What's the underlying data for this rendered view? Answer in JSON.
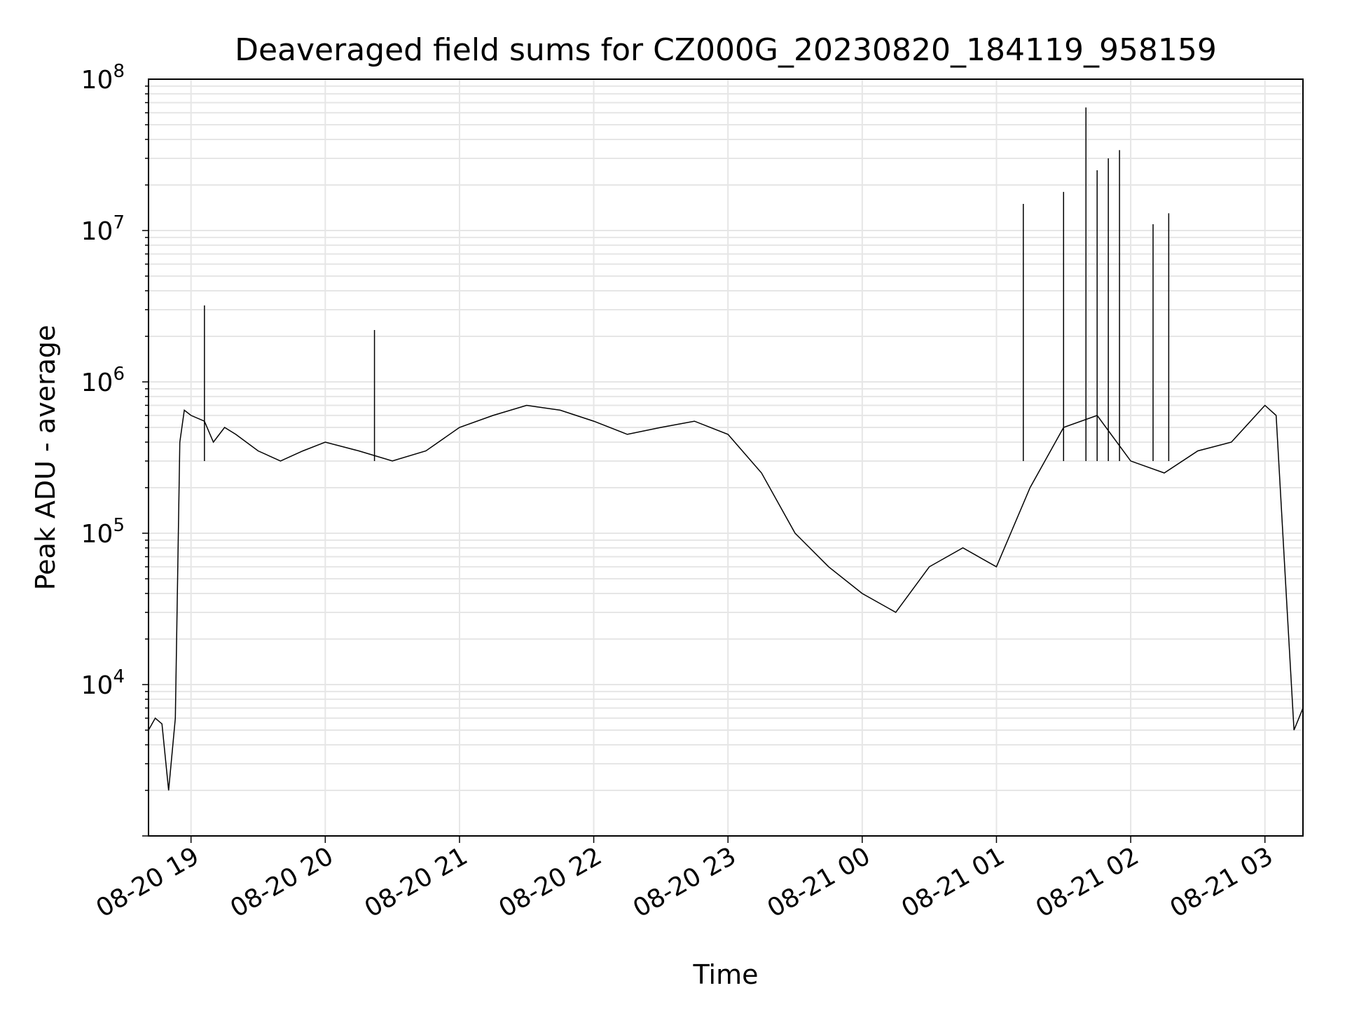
{
  "chart_data": {
    "type": "line",
    "title": "Deaveraged field sums for CZ000G_20230820_184119_958159",
    "xlabel": "Time",
    "ylabel": "Peak ADU - average",
    "yscale": "log",
    "ylim": [
      1000,
      100000000
    ],
    "xlim": [
      "2023-08-20 18:41",
      "2023-08-21 03:17"
    ],
    "grid": true,
    "x_ticks": [
      "08-20 19",
      "08-20 20",
      "08-20 21",
      "08-20 22",
      "08-20 23",
      "08-21 00",
      "08-21 01",
      "08-21 02",
      "08-21 03"
    ],
    "y_ticks": [
      {
        "base": "10",
        "exp": "4",
        "value": 10000
      },
      {
        "base": "10",
        "exp": "5",
        "value": 100000
      },
      {
        "base": "10",
        "exp": "6",
        "value": 1000000
      },
      {
        "base": "10",
        "exp": "7",
        "value": 10000000
      },
      {
        "base": "10",
        "exp": "8",
        "value": 100000000
      }
    ],
    "line_color": "#000000",
    "grid_color": "#e6e6e6",
    "series": [
      {
        "x": [
          "2023-08-20 18:41",
          "2023-08-20 18:44",
          "2023-08-20 18:47",
          "2023-08-20 18:50",
          "2023-08-20 18:53",
          "2023-08-20 18:55",
          "2023-08-20 18:57",
          "2023-08-20 19:00",
          "2023-08-20 19:06",
          "2023-08-20 19:10",
          "2023-08-20 19:15",
          "2023-08-20 19:20",
          "2023-08-20 19:30",
          "2023-08-20 19:40",
          "2023-08-20 19:50",
          "2023-08-20 20:00",
          "2023-08-20 20:15",
          "2023-08-20 20:30",
          "2023-08-20 20:45",
          "2023-08-20 21:00",
          "2023-08-20 21:15",
          "2023-08-20 21:30",
          "2023-08-20 21:45",
          "2023-08-20 22:00",
          "2023-08-20 22:15",
          "2023-08-20 22:30",
          "2023-08-20 22:45",
          "2023-08-20 23:00",
          "2023-08-20 23:15",
          "2023-08-20 23:30",
          "2023-08-20 23:45",
          "2023-08-21 00:00",
          "2023-08-21 00:15",
          "2023-08-21 00:30",
          "2023-08-21 00:45",
          "2023-08-21 01:00",
          "2023-08-21 01:15",
          "2023-08-21 01:30",
          "2023-08-21 01:45",
          "2023-08-21 02:00",
          "2023-08-21 02:15",
          "2023-08-21 02:30",
          "2023-08-21 02:45",
          "2023-08-21 03:00",
          "2023-08-21 03:05",
          "2023-08-21 03:10",
          "2023-08-21 03:13",
          "2023-08-21 03:17"
        ],
        "y": [
          5000,
          6000,
          5500,
          2000,
          6000,
          400000,
          650000,
          600000,
          550000,
          400000,
          500000,
          450000,
          350000,
          300000,
          350000,
          400000,
          350000,
          300000,
          350000,
          500000,
          600000,
          700000,
          650000,
          550000,
          450000,
          500000,
          550000,
          450000,
          250000,
          100000,
          60000,
          40000,
          30000,
          60000,
          80000,
          60000,
          200000,
          500000,
          600000,
          300000,
          250000,
          350000,
          400000,
          700000,
          600000,
          30000,
          5000,
          7000
        ]
      }
    ],
    "spikes": [
      {
        "x": "2023-08-20 19:06",
        "y": 3200000
      },
      {
        "x": "2023-08-20 20:22",
        "y": 2200000
      },
      {
        "x": "2023-08-21 01:12",
        "y": 15000000
      },
      {
        "x": "2023-08-21 01:30",
        "y": 18000000
      },
      {
        "x": "2023-08-21 01:40",
        "y": 65000000
      },
      {
        "x": "2023-08-21 01:45",
        "y": 25000000
      },
      {
        "x": "2023-08-21 01:50",
        "y": 30000000
      },
      {
        "x": "2023-08-21 01:55",
        "y": 34000000
      },
      {
        "x": "2023-08-21 02:10",
        "y": 11000000
      },
      {
        "x": "2023-08-21 02:17",
        "y": 13000000
      }
    ]
  }
}
